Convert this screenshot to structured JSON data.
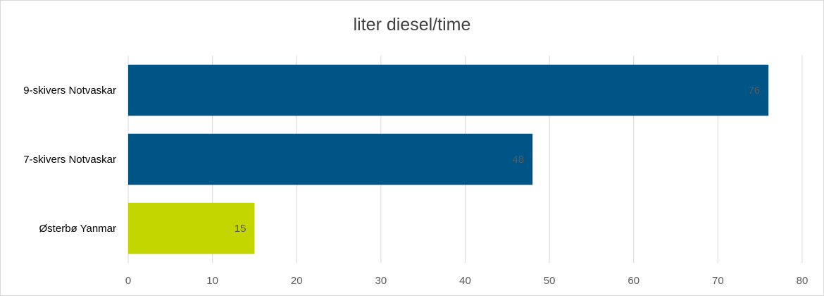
{
  "chart_data": {
    "type": "bar",
    "orientation": "horizontal",
    "title": "liter diesel/time",
    "xlabel": "",
    "ylabel": "",
    "categories": [
      "9-skivers Notvaskar",
      "7-skivers Notvaskar",
      "Østerbø Yanmar"
    ],
    "values": [
      76,
      48,
      15
    ],
    "data_labels": [
      "76",
      "48",
      "15"
    ],
    "bar_colors": [
      "#005587",
      "#005587",
      "#c4d600"
    ],
    "xlim": [
      0,
      80
    ],
    "x_ticks": [
      0,
      10,
      20,
      30,
      40,
      50,
      60,
      70,
      80
    ],
    "grid": true,
    "legend": "none"
  }
}
